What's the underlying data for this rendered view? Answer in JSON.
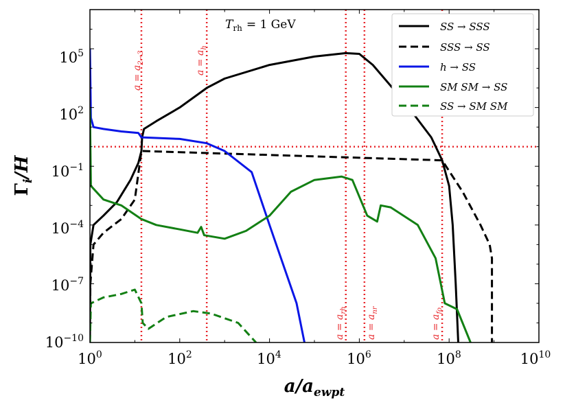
{
  "chart_data": {
    "type": "line",
    "annotation": "T_rh = 1 GeV",
    "xlabel": "a/a_ewpt",
    "ylabel": "Γ_i/H",
    "xscale": "log",
    "yscale": "log",
    "xlim": [
      1,
      10000000000
    ],
    "ylim": [
      1e-10,
      10000000
    ],
    "xtick_labels": [
      "10^0",
      "10^2",
      "10^4",
      "10^6",
      "10^8",
      "10^10"
    ],
    "ytick_labels": [
      "10^-10",
      "10^-7",
      "10^-4",
      "10^-1",
      "10^2",
      "10^5"
    ],
    "legend_position": "top-right",
    "reference_lines": {
      "vertical": [
        {
          "label": "a = a_{2→3}",
          "x": 14
        },
        {
          "label": "a = a_h",
          "x": 400
        },
        {
          "label": "a = a_rh",
          "x": 500000
        },
        {
          "label": "a = a_nr",
          "x": 1300000
        },
        {
          "label": "a = a_fo",
          "x": 70000000
        }
      ],
      "horizontal": [
        {
          "y": 1
        }
      ],
      "color": "#e8262b",
      "style": "dotted"
    },
    "series": [
      {
        "name": "SS → SSS",
        "color": "#000000",
        "dash": "solid",
        "points": [
          [
            1,
            1e-10
          ],
          [
            1.02,
            1e-05
          ],
          [
            1.2,
            0.0001
          ],
          [
            2,
            0.0003
          ],
          [
            4,
            0.0015
          ],
          [
            8,
            0.02
          ],
          [
            12,
            0.15
          ],
          [
            14,
            0.6
          ],
          [
            14.5,
            3
          ],
          [
            16,
            8
          ],
          [
            30,
            20
          ],
          [
            100,
            100
          ],
          [
            400,
            1000
          ],
          [
            1000,
            3000
          ],
          [
            10000,
            15000
          ],
          [
            100000,
            40000
          ],
          [
            500000,
            60000
          ],
          [
            1000000,
            55000
          ],
          [
            2000000,
            15000
          ],
          [
            10000000,
            200
          ],
          [
            40000000,
            3
          ],
          [
            70000000,
            0.2
          ],
          [
            100000000,
            0.01
          ],
          [
            120000000,
            0.0001
          ],
          [
            140000000,
            1e-07
          ],
          [
            160000000,
            1e-10
          ]
        ]
      },
      {
        "name": "SSS → SS",
        "color": "#000000",
        "dash": "dashed",
        "points": [
          [
            1,
            1e-10
          ],
          [
            1.02,
            1e-07
          ],
          [
            1.2,
            1e-05
          ],
          [
            2,
            4e-05
          ],
          [
            5,
            0.0002
          ],
          [
            10,
            0.002
          ],
          [
            14,
            0.6
          ],
          [
            70000000,
            0.2
          ],
          [
            200000000,
            0.005
          ],
          [
            500000000,
            0.0001
          ],
          [
            800000000,
            1e-05
          ],
          [
            900000000,
            2e-06
          ],
          [
            900000000,
            1e-10
          ]
        ]
      },
      {
        "name": "h → SS",
        "color": "#0a16e6",
        "dash": "solid",
        "points": [
          [
            1,
            100000.0
          ],
          [
            1.05,
            30
          ],
          [
            1.2,
            10
          ],
          [
            2,
            8
          ],
          [
            5,
            6
          ],
          [
            12,
            5
          ],
          [
            14,
            3
          ],
          [
            100,
            2.5
          ],
          [
            400,
            1.5
          ],
          [
            1000,
            0.6
          ],
          [
            4000,
            0.05
          ],
          [
            10000,
            0.0001
          ],
          [
            20000,
            1e-06
          ],
          [
            40000,
            1e-08
          ],
          [
            60000,
            1e-10
          ]
        ]
      },
      {
        "name": "SM SM → SS",
        "color": "#138014",
        "dash": "solid",
        "points": [
          [
            1,
            100
          ],
          [
            1.05,
            0.01
          ],
          [
            2,
            0.002
          ],
          [
            5,
            0.001
          ],
          [
            14,
            0.0002
          ],
          [
            30,
            0.0001
          ],
          [
            100,
            6e-05
          ],
          [
            250,
            4e-05
          ],
          [
            300,
            8e-05
          ],
          [
            350,
            3e-05
          ],
          [
            1000,
            2e-05
          ],
          [
            3000,
            5e-05
          ],
          [
            10000,
            0.0003
          ],
          [
            30000,
            0.005
          ],
          [
            100000,
            0.02
          ],
          [
            400000,
            0.03
          ],
          [
            700000,
            0.02
          ],
          [
            1500000,
            0.0003
          ],
          [
            2500000,
            0.00015
          ],
          [
            3000000,
            0.001
          ],
          [
            5000000,
            0.0008
          ],
          [
            20000000,
            0.0001
          ],
          [
            50000000,
            2e-06
          ],
          [
            80000000,
            1e-08
          ],
          [
            150000000,
            5e-09
          ],
          [
            300000000,
            1e-10
          ]
        ]
      },
      {
        "name": "SS → SM SM",
        "color": "#138014",
        "dash": "dashed",
        "points": [
          [
            1,
            1e-10
          ],
          [
            1.05,
            1e-08
          ],
          [
            2,
            2e-08
          ],
          [
            5,
            3e-08
          ],
          [
            10,
            5e-08
          ],
          [
            14,
            1e-08
          ],
          [
            15,
            1e-09
          ],
          [
            20,
            5e-10
          ],
          [
            50,
            2e-09
          ],
          [
            200,
            4e-09
          ],
          [
            500,
            3e-09
          ],
          [
            2000,
            1e-09
          ],
          [
            5000,
            1e-10
          ]
        ]
      }
    ]
  },
  "legend": {
    "items": [
      {
        "label": "SS → SSS",
        "color": "#000000",
        "dash": "solid"
      },
      {
        "label": "SSS → SS",
        "color": "#000000",
        "dash": "dashed"
      },
      {
        "label": "h → SS",
        "color": "#0a16e6",
        "dash": "solid"
      },
      {
        "label": "SM SM → SS",
        "color": "#138014",
        "dash": "solid"
      },
      {
        "label": "SS → SM SM",
        "color": "#138014",
        "dash": "dashed"
      }
    ]
  },
  "annotation": {
    "text": "T",
    "subscript": "rh",
    "value": "= 1 GeV"
  },
  "axes": {
    "xlabel": {
      "main": "a/a",
      "sub": "ewpt"
    },
    "ylabel": {
      "main": "Γ",
      "sub": "i",
      "rest": "/H"
    },
    "x_ticks": [
      {
        "base": "10",
        "exp": "0"
      },
      {
        "base": "10",
        "exp": "2"
      },
      {
        "base": "10",
        "exp": "4"
      },
      {
        "base": "10",
        "exp": "6"
      },
      {
        "base": "10",
        "exp": "8"
      },
      {
        "base": "10",
        "exp": "10"
      }
    ],
    "y_ticks": [
      {
        "base": "10",
        "exp": "−10"
      },
      {
        "base": "10",
        "exp": "−7"
      },
      {
        "base": "10",
        "exp": "−4"
      },
      {
        "base": "10",
        "exp": "−1"
      },
      {
        "base": "10",
        "exp": "2"
      },
      {
        "base": "10",
        "exp": "5"
      }
    ]
  },
  "vlabels": [
    {
      "main": "a = a",
      "sub": "2→3"
    },
    {
      "main": "a = a",
      "sub": "h"
    },
    {
      "main": "a = a",
      "sub": "rh"
    },
    {
      "main": "a = a",
      "sub": "nr"
    },
    {
      "main": "a = a",
      "sub": "fo"
    }
  ]
}
